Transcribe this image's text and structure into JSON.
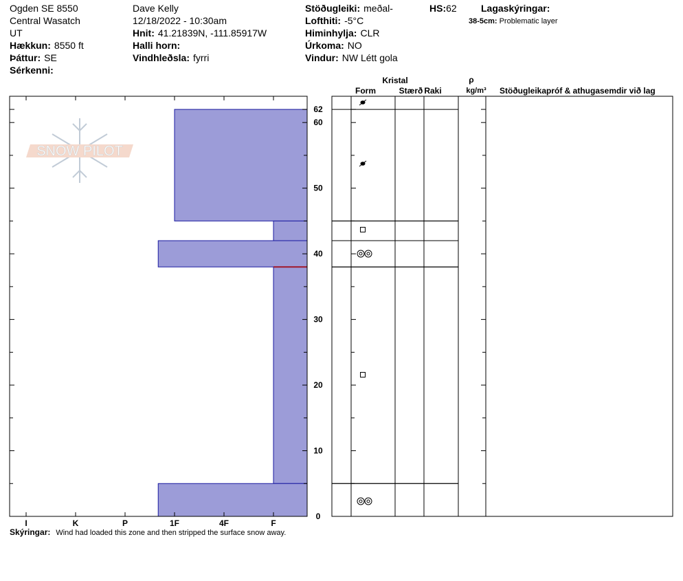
{
  "header": {
    "site": "Ogden SE 8550",
    "range": "Central Wasatch",
    "state": "UT",
    "elevation": {
      "label": "Hækkun:",
      "value": "8550 ft"
    },
    "aspect": {
      "label": "Þáttur:",
      "value": "SE"
    },
    "features": {
      "label": "Sérkenni:"
    },
    "observer": "Dave Kelly",
    "datetime": "12/18/2022 - 10:30am",
    "coords": {
      "label": "Hnit:",
      "value": "41.21839N, -111.85917W"
    },
    "slope": {
      "label": "Halli horn:"
    },
    "wind_loading": {
      "label": "Vindhleðsla:",
      "value": "fyrri"
    },
    "stability": {
      "label": "Stöðugleiki:",
      "value": "meðal-"
    },
    "air_temp": {
      "label": "Lofthiti:",
      "value": "-5°C"
    },
    "sky": {
      "label": "Himinhylja:",
      "value": "CLR"
    },
    "precip": {
      "label": "Úrkoma:",
      "value": "NO"
    },
    "wind": {
      "label": "Vindur:",
      "value": "NW Létt gola"
    },
    "hs": {
      "label": "HS:",
      "value": 62
    },
    "layer_notes_title": "Lagaskýringar:"
  },
  "problematic_layer": {
    "label": "38-5cm:",
    "text": "Problematic layer",
    "top": 38,
    "bottom": 5
  },
  "watermark": "SNOW PILOT",
  "depth_range": [
    0,
    64
  ],
  "depth_ticks": [
    0,
    10,
    20,
    30,
    40,
    50,
    60,
    62
  ],
  "minor_depth_ticks": [
    5,
    15,
    25,
    35,
    45,
    55
  ],
  "hardness_ticks": [
    {
      "value": 6,
      "label": "I"
    },
    {
      "value": 5,
      "label": "K"
    },
    {
      "value": 4,
      "label": "P"
    },
    {
      "value": 3,
      "label": "1F"
    },
    {
      "value": 2,
      "label": "4F"
    },
    {
      "value": 1,
      "label": "F"
    }
  ],
  "layers": [
    {
      "top": 62,
      "bottom": 45,
      "hardness": 3
    },
    {
      "top": 45,
      "bottom": 42,
      "hardness": 1
    },
    {
      "top": 42,
      "bottom": 38,
      "hardness": 3.33
    },
    {
      "top": 38,
      "bottom": 5,
      "hardness": 1
    },
    {
      "top": 5,
      "bottom": 0,
      "hardness": 3.33
    }
  ],
  "table_headers": {
    "crystal": "Kristal",
    "form": "Form",
    "size": "Stærð",
    "moisture": "Raki",
    "density_symbol": "ρ",
    "density_unit": "kg/m³",
    "comments": "Stöðugleikapróf & athugasemdir við lag"
  },
  "notes": {
    "label": "Skýringar:",
    "text": "Wind had loaded this zone and then stripped the surface snow away."
  }
}
